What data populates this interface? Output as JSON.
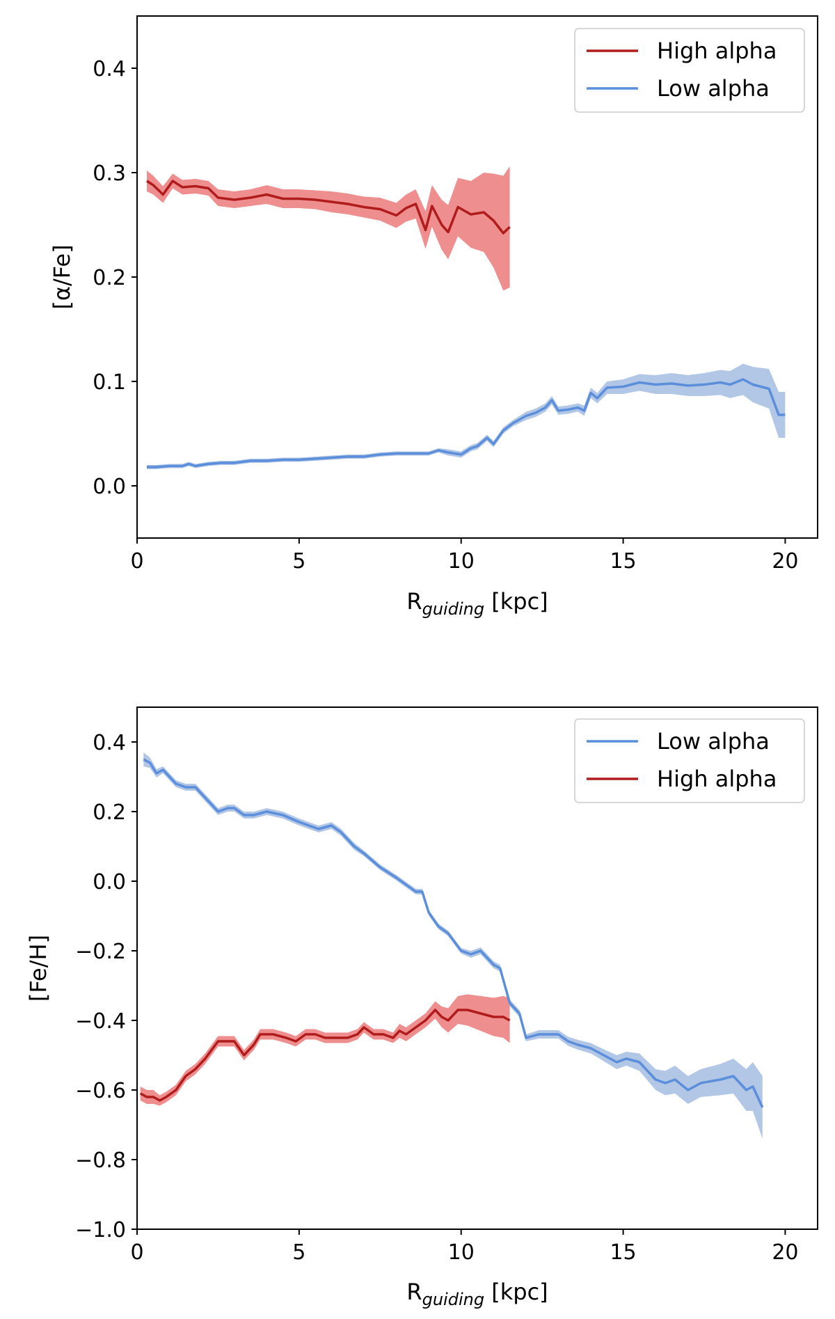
{
  "chart_data": [
    {
      "type": "line",
      "xlabel_main": "R",
      "xlabel_sub": "guiding",
      "xlabel_unit": " [kpc]",
      "ylabel": "[α/Fe]",
      "xlim": [
        0,
        21
      ],
      "ylim": [
        -0.05,
        0.45
      ],
      "xticks": [
        0,
        5,
        10,
        15,
        20
      ],
      "xtick_labels": [
        "0",
        "5",
        "10",
        "15",
        "20"
      ],
      "yticks": [
        0.0,
        0.1,
        0.2,
        0.3,
        0.4
      ],
      "ytick_labels": [
        "0.0",
        "0.1",
        "0.2",
        "0.3",
        "0.4"
      ],
      "legend_position": "top-right",
      "series": [
        {
          "name": "High alpha",
          "color": "#b01c1c",
          "band_color": "#ec7a7a",
          "x": [
            0.3,
            0.5,
            0.8,
            1.1,
            1.4,
            1.8,
            2.2,
            2.5,
            3.0,
            3.5,
            4.0,
            4.5,
            5.0,
            5.5,
            6.0,
            6.5,
            7.0,
            7.5,
            8.0,
            8.3,
            8.6,
            8.9,
            9.1,
            9.4,
            9.6,
            9.9,
            10.3,
            10.7,
            11.0,
            11.3,
            11.5
          ],
          "values": [
            0.292,
            0.288,
            0.279,
            0.292,
            0.286,
            0.287,
            0.285,
            0.276,
            0.274,
            0.276,
            0.279,
            0.275,
            0.275,
            0.274,
            0.272,
            0.27,
            0.267,
            0.265,
            0.259,
            0.266,
            0.27,
            0.245,
            0.268,
            0.25,
            0.243,
            0.267,
            0.26,
            0.262,
            0.254,
            0.242,
            0.248
          ],
          "err": [
            0.01,
            0.009,
            0.008,
            0.007,
            0.007,
            0.007,
            0.007,
            0.008,
            0.008,
            0.008,
            0.009,
            0.009,
            0.009,
            0.009,
            0.01,
            0.01,
            0.01,
            0.011,
            0.012,
            0.013,
            0.014,
            0.018,
            0.02,
            0.024,
            0.026,
            0.028,
            0.032,
            0.038,
            0.045,
            0.055,
            0.058
          ]
        },
        {
          "name": "Low alpha",
          "color": "#5b8edb",
          "band_color": "#a5bde0",
          "x": [
            0.3,
            0.6,
            1.0,
            1.4,
            1.6,
            1.8,
            2.2,
            2.6,
            3.0,
            3.5,
            4.0,
            4.5,
            5.0,
            5.5,
            6.0,
            6.5,
            7.0,
            7.5,
            8.0,
            8.5,
            9.0,
            9.3,
            9.6,
            10.0,
            10.3,
            10.5,
            10.8,
            11.0,
            11.3,
            11.6,
            12.0,
            12.3,
            12.6,
            12.8,
            13.0,
            13.3,
            13.6,
            13.8,
            14.0,
            14.2,
            14.5,
            15.0,
            15.5,
            16.0,
            16.5,
            17.0,
            17.5,
            18.0,
            18.3,
            18.7,
            19.0,
            19.5,
            19.8,
            20.0
          ],
          "values": [
            0.018,
            0.018,
            0.019,
            0.019,
            0.021,
            0.019,
            0.021,
            0.022,
            0.022,
            0.024,
            0.024,
            0.025,
            0.025,
            0.026,
            0.027,
            0.028,
            0.028,
            0.03,
            0.031,
            0.031,
            0.031,
            0.034,
            0.032,
            0.03,
            0.036,
            0.038,
            0.046,
            0.04,
            0.053,
            0.06,
            0.067,
            0.07,
            0.075,
            0.082,
            0.072,
            0.073,
            0.075,
            0.072,
            0.089,
            0.084,
            0.094,
            0.095,
            0.099,
            0.097,
            0.098,
            0.096,
            0.097,
            0.099,
            0.097,
            0.102,
            0.097,
            0.093,
            0.068,
            0.068
          ],
          "err": [
            0.002,
            0.002,
            0.002,
            0.002,
            0.002,
            0.002,
            0.002,
            0.002,
            0.002,
            0.002,
            0.002,
            0.002,
            0.002,
            0.002,
            0.002,
            0.002,
            0.002,
            0.002,
            0.002,
            0.002,
            0.002,
            0.002,
            0.003,
            0.003,
            0.003,
            0.003,
            0.003,
            0.003,
            0.003,
            0.003,
            0.004,
            0.004,
            0.004,
            0.004,
            0.004,
            0.004,
            0.004,
            0.005,
            0.005,
            0.005,
            0.006,
            0.007,
            0.008,
            0.009,
            0.01,
            0.01,
            0.011,
            0.012,
            0.013,
            0.015,
            0.017,
            0.019,
            0.022,
            0.022
          ]
        }
      ],
      "legend": [
        "High alpha",
        "Low alpha"
      ]
    },
    {
      "type": "line",
      "xlabel_main": "R",
      "xlabel_sub": "guiding",
      "xlabel_unit": " [kpc]",
      "ylabel": "[Fe/H]",
      "xlim": [
        0,
        21
      ],
      "ylim": [
        -1.0,
        0.5
      ],
      "xticks": [
        0,
        5,
        10,
        15,
        20
      ],
      "xtick_labels": [
        "0",
        "5",
        "10",
        "15",
        "20"
      ],
      "yticks": [
        -1.0,
        -0.8,
        -0.6,
        -0.4,
        -0.2,
        0.0,
        0.2,
        0.4
      ],
      "ytick_labels": [
        "−1.0",
        "−0.8",
        "−0.6",
        "−0.4",
        "−0.2",
        "0.0",
        "0.2",
        "0.4"
      ],
      "legend_position": "top-right",
      "series": [
        {
          "name": "Low alpha",
          "color": "#5b8edb",
          "band_color": "#a5bde0",
          "x": [
            0.2,
            0.4,
            0.6,
            0.8,
            1.2,
            1.5,
            1.8,
            2.2,
            2.5,
            2.8,
            3.0,
            3.3,
            3.6,
            4.0,
            4.5,
            5.0,
            5.3,
            5.6,
            6.0,
            6.3,
            6.7,
            7.0,
            7.5,
            8.0,
            8.3,
            8.6,
            8.8,
            9.0,
            9.3,
            9.6,
            10.0,
            10.3,
            10.6,
            11.0,
            11.2,
            11.5,
            11.8,
            12.0,
            12.4,
            12.8,
            13.0,
            13.3,
            13.6,
            14.0,
            14.4,
            14.8,
            15.1,
            15.5,
            16.0,
            16.3,
            16.6,
            17.0,
            17.4,
            18.0,
            18.4,
            18.8,
            19.0,
            19.3
          ],
          "values": [
            0.35,
            0.34,
            0.31,
            0.32,
            0.28,
            0.27,
            0.27,
            0.23,
            0.2,
            0.21,
            0.21,
            0.19,
            0.19,
            0.2,
            0.19,
            0.17,
            0.16,
            0.15,
            0.16,
            0.14,
            0.1,
            0.08,
            0.04,
            0.01,
            -0.01,
            -0.03,
            -0.03,
            -0.09,
            -0.13,
            -0.15,
            -0.2,
            -0.21,
            -0.2,
            -0.24,
            -0.25,
            -0.35,
            -0.38,
            -0.45,
            -0.44,
            -0.44,
            -0.44,
            -0.46,
            -0.47,
            -0.48,
            -0.5,
            -0.52,
            -0.51,
            -0.52,
            -0.57,
            -0.58,
            -0.57,
            -0.6,
            -0.58,
            -0.57,
            -0.56,
            -0.6,
            -0.59,
            -0.65
          ],
          "err": [
            0.02,
            0.015,
            0.012,
            0.01,
            0.01,
            0.01,
            0.01,
            0.01,
            0.01,
            0.01,
            0.01,
            0.01,
            0.01,
            0.01,
            0.01,
            0.01,
            0.01,
            0.01,
            0.01,
            0.01,
            0.01,
            0.008,
            0.008,
            0.008,
            0.008,
            0.008,
            0.008,
            0.008,
            0.008,
            0.008,
            0.008,
            0.01,
            0.01,
            0.01,
            0.01,
            0.01,
            0.01,
            0.01,
            0.012,
            0.012,
            0.012,
            0.013,
            0.014,
            0.015,
            0.017,
            0.02,
            0.02,
            0.025,
            0.03,
            0.035,
            0.04,
            0.04,
            0.04,
            0.045,
            0.05,
            0.06,
            0.07,
            0.09
          ]
        },
        {
          "name": "High alpha",
          "color": "#b01c1c",
          "band_color": "#ec7a7a",
          "x": [
            0.1,
            0.3,
            0.5,
            0.7,
            0.9,
            1.2,
            1.5,
            1.8,
            2.1,
            2.5,
            2.8,
            3.0,
            3.3,
            3.6,
            3.8,
            4.2,
            4.6,
            4.9,
            5.2,
            5.5,
            5.8,
            6.2,
            6.5,
            6.8,
            7.0,
            7.3,
            7.6,
            7.9,
            8.1,
            8.3,
            8.6,
            8.9,
            9.2,
            9.4,
            9.6,
            9.9,
            10.2,
            10.6,
            11.0,
            11.3,
            11.5
          ],
          "values": [
            -0.61,
            -0.62,
            -0.62,
            -0.63,
            -0.62,
            -0.6,
            -0.56,
            -0.54,
            -0.51,
            -0.46,
            -0.46,
            -0.46,
            -0.5,
            -0.47,
            -0.44,
            -0.44,
            -0.45,
            -0.46,
            -0.44,
            -0.44,
            -0.45,
            -0.45,
            -0.45,
            -0.44,
            -0.42,
            -0.44,
            -0.44,
            -0.45,
            -0.43,
            -0.44,
            -0.42,
            -0.4,
            -0.37,
            -0.39,
            -0.4,
            -0.37,
            -0.37,
            -0.38,
            -0.39,
            -0.39,
            -0.4
          ],
          "err": [
            0.02,
            0.02,
            0.02,
            0.015,
            0.015,
            0.015,
            0.015,
            0.015,
            0.015,
            0.015,
            0.015,
            0.015,
            0.015,
            0.015,
            0.015,
            0.015,
            0.015,
            0.015,
            0.015,
            0.015,
            0.015,
            0.015,
            0.015,
            0.015,
            0.015,
            0.015,
            0.015,
            0.015,
            0.02,
            0.02,
            0.02,
            0.02,
            0.025,
            0.03,
            0.035,
            0.04,
            0.045,
            0.05,
            0.055,
            0.06,
            0.065
          ]
        }
      ],
      "legend": [
        "Low alpha",
        "High alpha"
      ]
    }
  ]
}
